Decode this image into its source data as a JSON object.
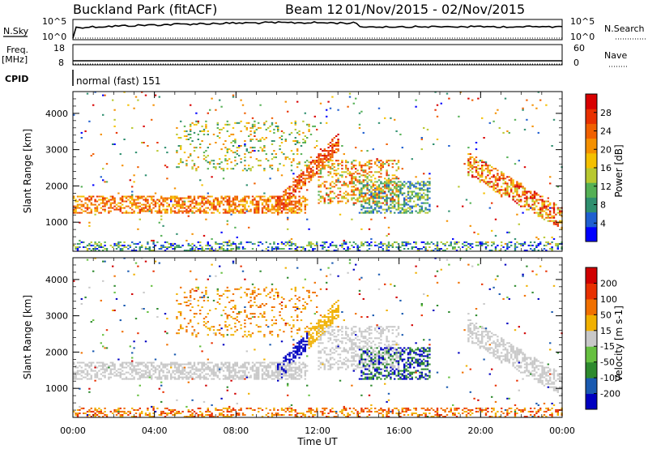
{
  "header": {
    "station": "Buckland Park (fitACF)",
    "beam": "Beam 12",
    "date_range": "01/Nov/2015 - 02/Nov/2015"
  },
  "panels": {
    "nsky_label": "N.Sky",
    "nsearch_label": "N.Search",
    "freq_label": "Freq.",
    "freq_unit": "[MHz]",
    "nave_label": "Nave",
    "cpid_label": "CPID",
    "cpid_text": "normal (fast) 151",
    "noise_ticks_left": [
      "10^5",
      "10^0"
    ],
    "noise_ticks_right": [
      "10^5",
      "10^0"
    ],
    "freq_ticks": [
      "18",
      "8"
    ],
    "nave_ticks": [
      "60",
      "0"
    ]
  },
  "chart_data": [
    {
      "type": "heatmap",
      "ylabel": "Slant Range [km]",
      "xlabel": "Time UT",
      "x_ticks": [
        "00:00",
        "04:00",
        "08:00",
        "12:00",
        "16:00",
        "20:00",
        "00:00"
      ],
      "y_ticks": [
        1000,
        2000,
        3000,
        4000
      ],
      "ylim": [
        200,
        4600
      ],
      "colorbar": {
        "label": "Power [dB]",
        "ticks": [
          4,
          8,
          12,
          16,
          20,
          24,
          28
        ],
        "colors": [
          "#0000ff",
          "#1f5fd0",
          "#2f8f6f",
          "#55b055",
          "#b8c830",
          "#f4c000",
          "#f49000",
          "#f06000",
          "#e83000",
          "#d80000"
        ]
      }
    },
    {
      "type": "heatmap",
      "ylabel": "Slant Range [km]",
      "xlabel": "Time UT",
      "x_ticks": [
        "00:00",
        "04:00",
        "08:00",
        "12:00",
        "16:00",
        "20:00",
        "00:00"
      ],
      "y_ticks": [
        1000,
        2000,
        3000,
        4000
      ],
      "ylim": [
        200,
        4600
      ],
      "colorbar": {
        "label": "Velocity [m s-1]",
        "ticks": [
          "200",
          "100",
          "50",
          "15",
          "-15",
          "-50",
          "-100",
          "-200"
        ],
        "colors": [
          "#0000c0",
          "#1a5ab0",
          "#2e8a2e",
          "#66c040",
          "#c8c8c8",
          "#f0b000",
          "#f07000",
          "#e83000",
          "#d00000"
        ]
      }
    }
  ]
}
